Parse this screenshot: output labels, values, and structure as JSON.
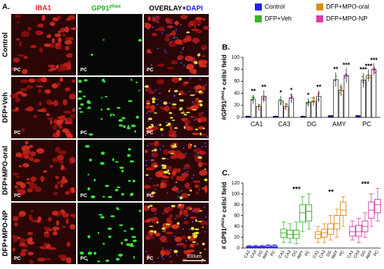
{
  "panel_a": {
    "label": "A.",
    "headers": {
      "iba1": "IBA1",
      "gp91": "GP91",
      "gp91_sup": "phox",
      "overlay": "OVERLAY+",
      "dapi": "DAPI"
    },
    "rows": [
      "Control",
      "DFP+Veh",
      "DFP+MPO-oral",
      "DFP+MPO-NP"
    ],
    "cell_label": "PC",
    "scale_bar": "100um"
  },
  "chart_data": [
    {
      "type": "bar",
      "label": "B.",
      "y_label": [
        "#GP91",
        "phox",
        "+ cells/ field"
      ],
      "categories": [
        "CA1",
        "CA3",
        "DG",
        "AMY",
        "PC"
      ],
      "ylim": [
        0,
        100
      ],
      "yticks": [
        0,
        20,
        40,
        60,
        80,
        100
      ],
      "series": [
        {
          "name": "Control",
          "color": "#2020ff",
          "values": [
            2,
            2,
            2,
            3,
            3
          ],
          "errors": [
            1,
            1,
            1,
            1,
            1
          ],
          "significance": [
            null,
            null,
            null,
            null,
            null
          ]
        },
        {
          "name": "DFP+Veh",
          "color": "#3cb22c",
          "values": [
            30,
            28,
            25,
            63,
            62
          ],
          "errors": [
            8,
            8,
            7,
            12,
            12
          ],
          "significance": [
            "**",
            "*",
            "*",
            "**",
            "***"
          ]
        },
        {
          "name": "DFP+MPO-oral",
          "color": "#e08a1e",
          "values": [
            18,
            18,
            27,
            45,
            70
          ],
          "errors": [
            5,
            6,
            8,
            10,
            10
          ],
          "significance": [
            null,
            null,
            null,
            null,
            "***"
          ]
        },
        {
          "name": "DFP+MPO-NP",
          "color": "#d63ca8",
          "values": [
            35,
            32,
            35,
            70,
            80
          ],
          "errors": [
            10,
            8,
            10,
            12,
            10
          ],
          "significance": [
            "**",
            "*",
            "**",
            "***",
            "***"
          ]
        }
      ]
    },
    {
      "type": "box",
      "label": "C.",
      "y_label": [
        "# GP91",
        "phox",
        "+ cells/ field"
      ],
      "categories": [
        "CA1",
        "CA3",
        "DG",
        "AMY",
        "PC"
      ],
      "ylim": [
        0,
        120
      ],
      "yticks": [
        0,
        20,
        40,
        60,
        80,
        100,
        120
      ],
      "series": [
        {
          "color": "#2020ff",
          "values": [
            {
              "min": 0,
              "q1": 1,
              "median": 2,
              "q3": 3,
              "max": 5
            },
            {
              "min": 0,
              "q1": 1,
              "median": 2,
              "q3": 3,
              "max": 5
            },
            {
              "min": 0,
              "q1": 1,
              "median": 2,
              "q3": 3,
              "max": 5
            },
            {
              "min": 0,
              "q1": 1,
              "median": 2,
              "q3": 4,
              "max": 6
            },
            {
              "min": 0,
              "q1": 1,
              "median": 2,
              "q3": 4,
              "max": 6
            }
          ]
        },
        {
          "color": "#3cb22c",
          "significance": "***",
          "values": [
            {
              "min": 10,
              "q1": 20,
              "median": 28,
              "q3": 35,
              "max": 48
            },
            {
              "min": 10,
              "q1": 18,
              "median": 25,
              "q3": 33,
              "max": 45
            },
            {
              "min": 8,
              "q1": 18,
              "median": 25,
              "q3": 33,
              "max": 48
            },
            {
              "min": 30,
              "q1": 48,
              "median": 65,
              "q3": 80,
              "max": 95
            },
            {
              "min": 35,
              "q1": 50,
              "median": 68,
              "q3": 80,
              "max": 100
            }
          ]
        },
        {
          "color": "#e08a1e",
          "significance": "**",
          "values": [
            {
              "min": 10,
              "q1": 18,
              "median": 25,
              "q3": 30,
              "max": 40
            },
            {
              "min": 10,
              "q1": 20,
              "median": 28,
              "q3": 35,
              "max": 45
            },
            {
              "min": 15,
              "q1": 25,
              "median": 35,
              "q3": 45,
              "max": 60
            },
            {
              "min": 20,
              "q1": 35,
              "median": 45,
              "q3": 60,
              "max": 72
            },
            {
              "min": 40,
              "q1": 60,
              "median": 70,
              "q3": 85,
              "max": 95
            }
          ]
        },
        {
          "color": "#d63ca8",
          "significance": "***",
          "values": [
            {
              "min": 15,
              "q1": 22,
              "median": 30,
              "q3": 40,
              "max": 50
            },
            {
              "min": 10,
              "q1": 22,
              "median": 30,
              "q3": 42,
              "max": 55
            },
            {
              "min": 20,
              "q1": 30,
              "median": 40,
              "q3": 50,
              "max": 65
            },
            {
              "min": 40,
              "q1": 55,
              "median": 70,
              "q3": 85,
              "max": 100
            },
            {
              "min": 50,
              "q1": 65,
              "median": 80,
              "q3": 90,
              "max": 110
            }
          ]
        }
      ]
    }
  ]
}
